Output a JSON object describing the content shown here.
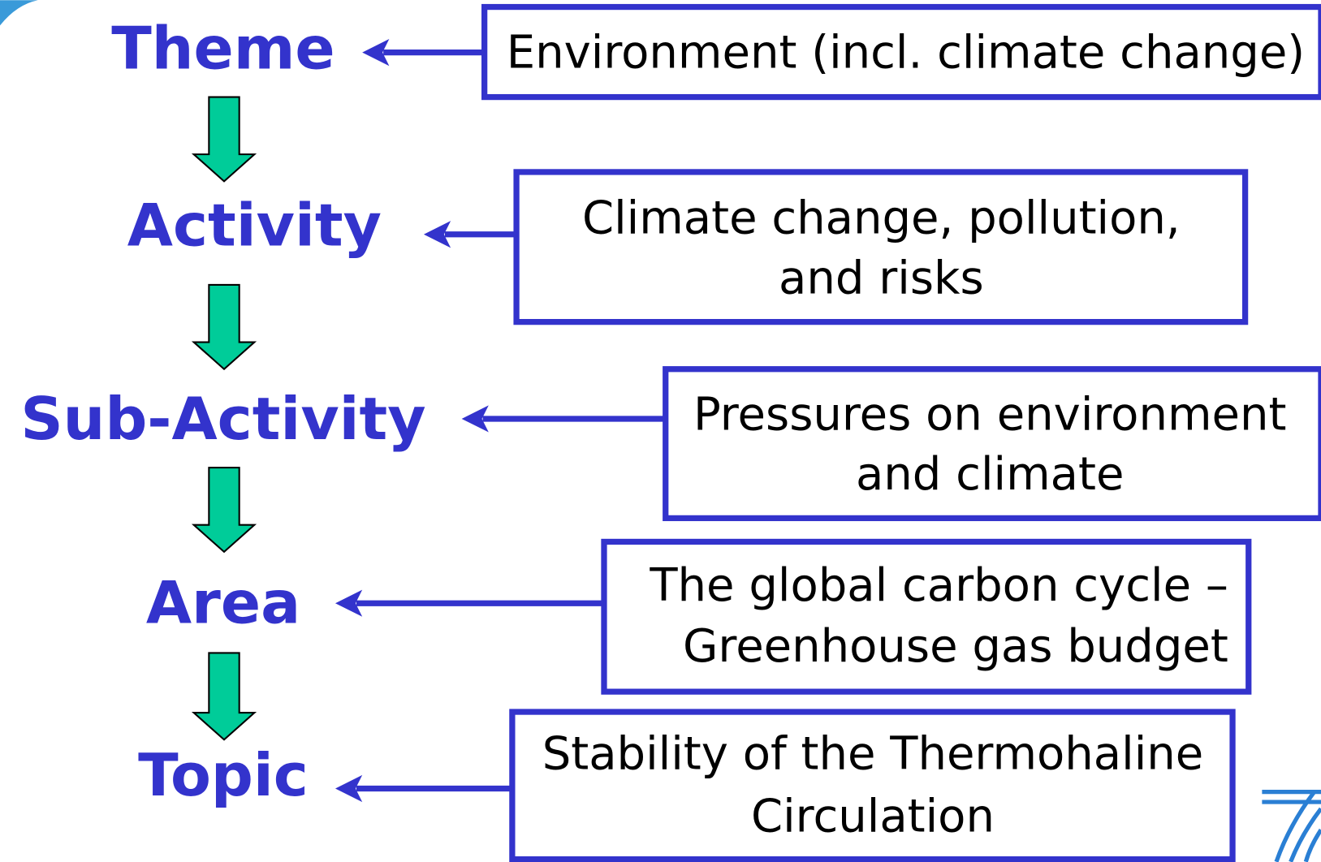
{
  "nodes": [
    {
      "label": "Theme",
      "description": [
        "Environment (incl. climate change)"
      ]
    },
    {
      "label": "Activity",
      "description": [
        "Climate change, pollution,",
        "and risks"
      ]
    },
    {
      "label": "Sub-Activity",
      "description": [
        "Pressures on environment",
        "and climate"
      ]
    },
    {
      "label": "Area",
      "description": [
        "The global carbon cycle –",
        "Greenhouse gas budget"
      ]
    },
    {
      "label": "Topic",
      "description": [
        "Stability of the Thermohaline",
        "Circulation"
      ]
    }
  ]
}
